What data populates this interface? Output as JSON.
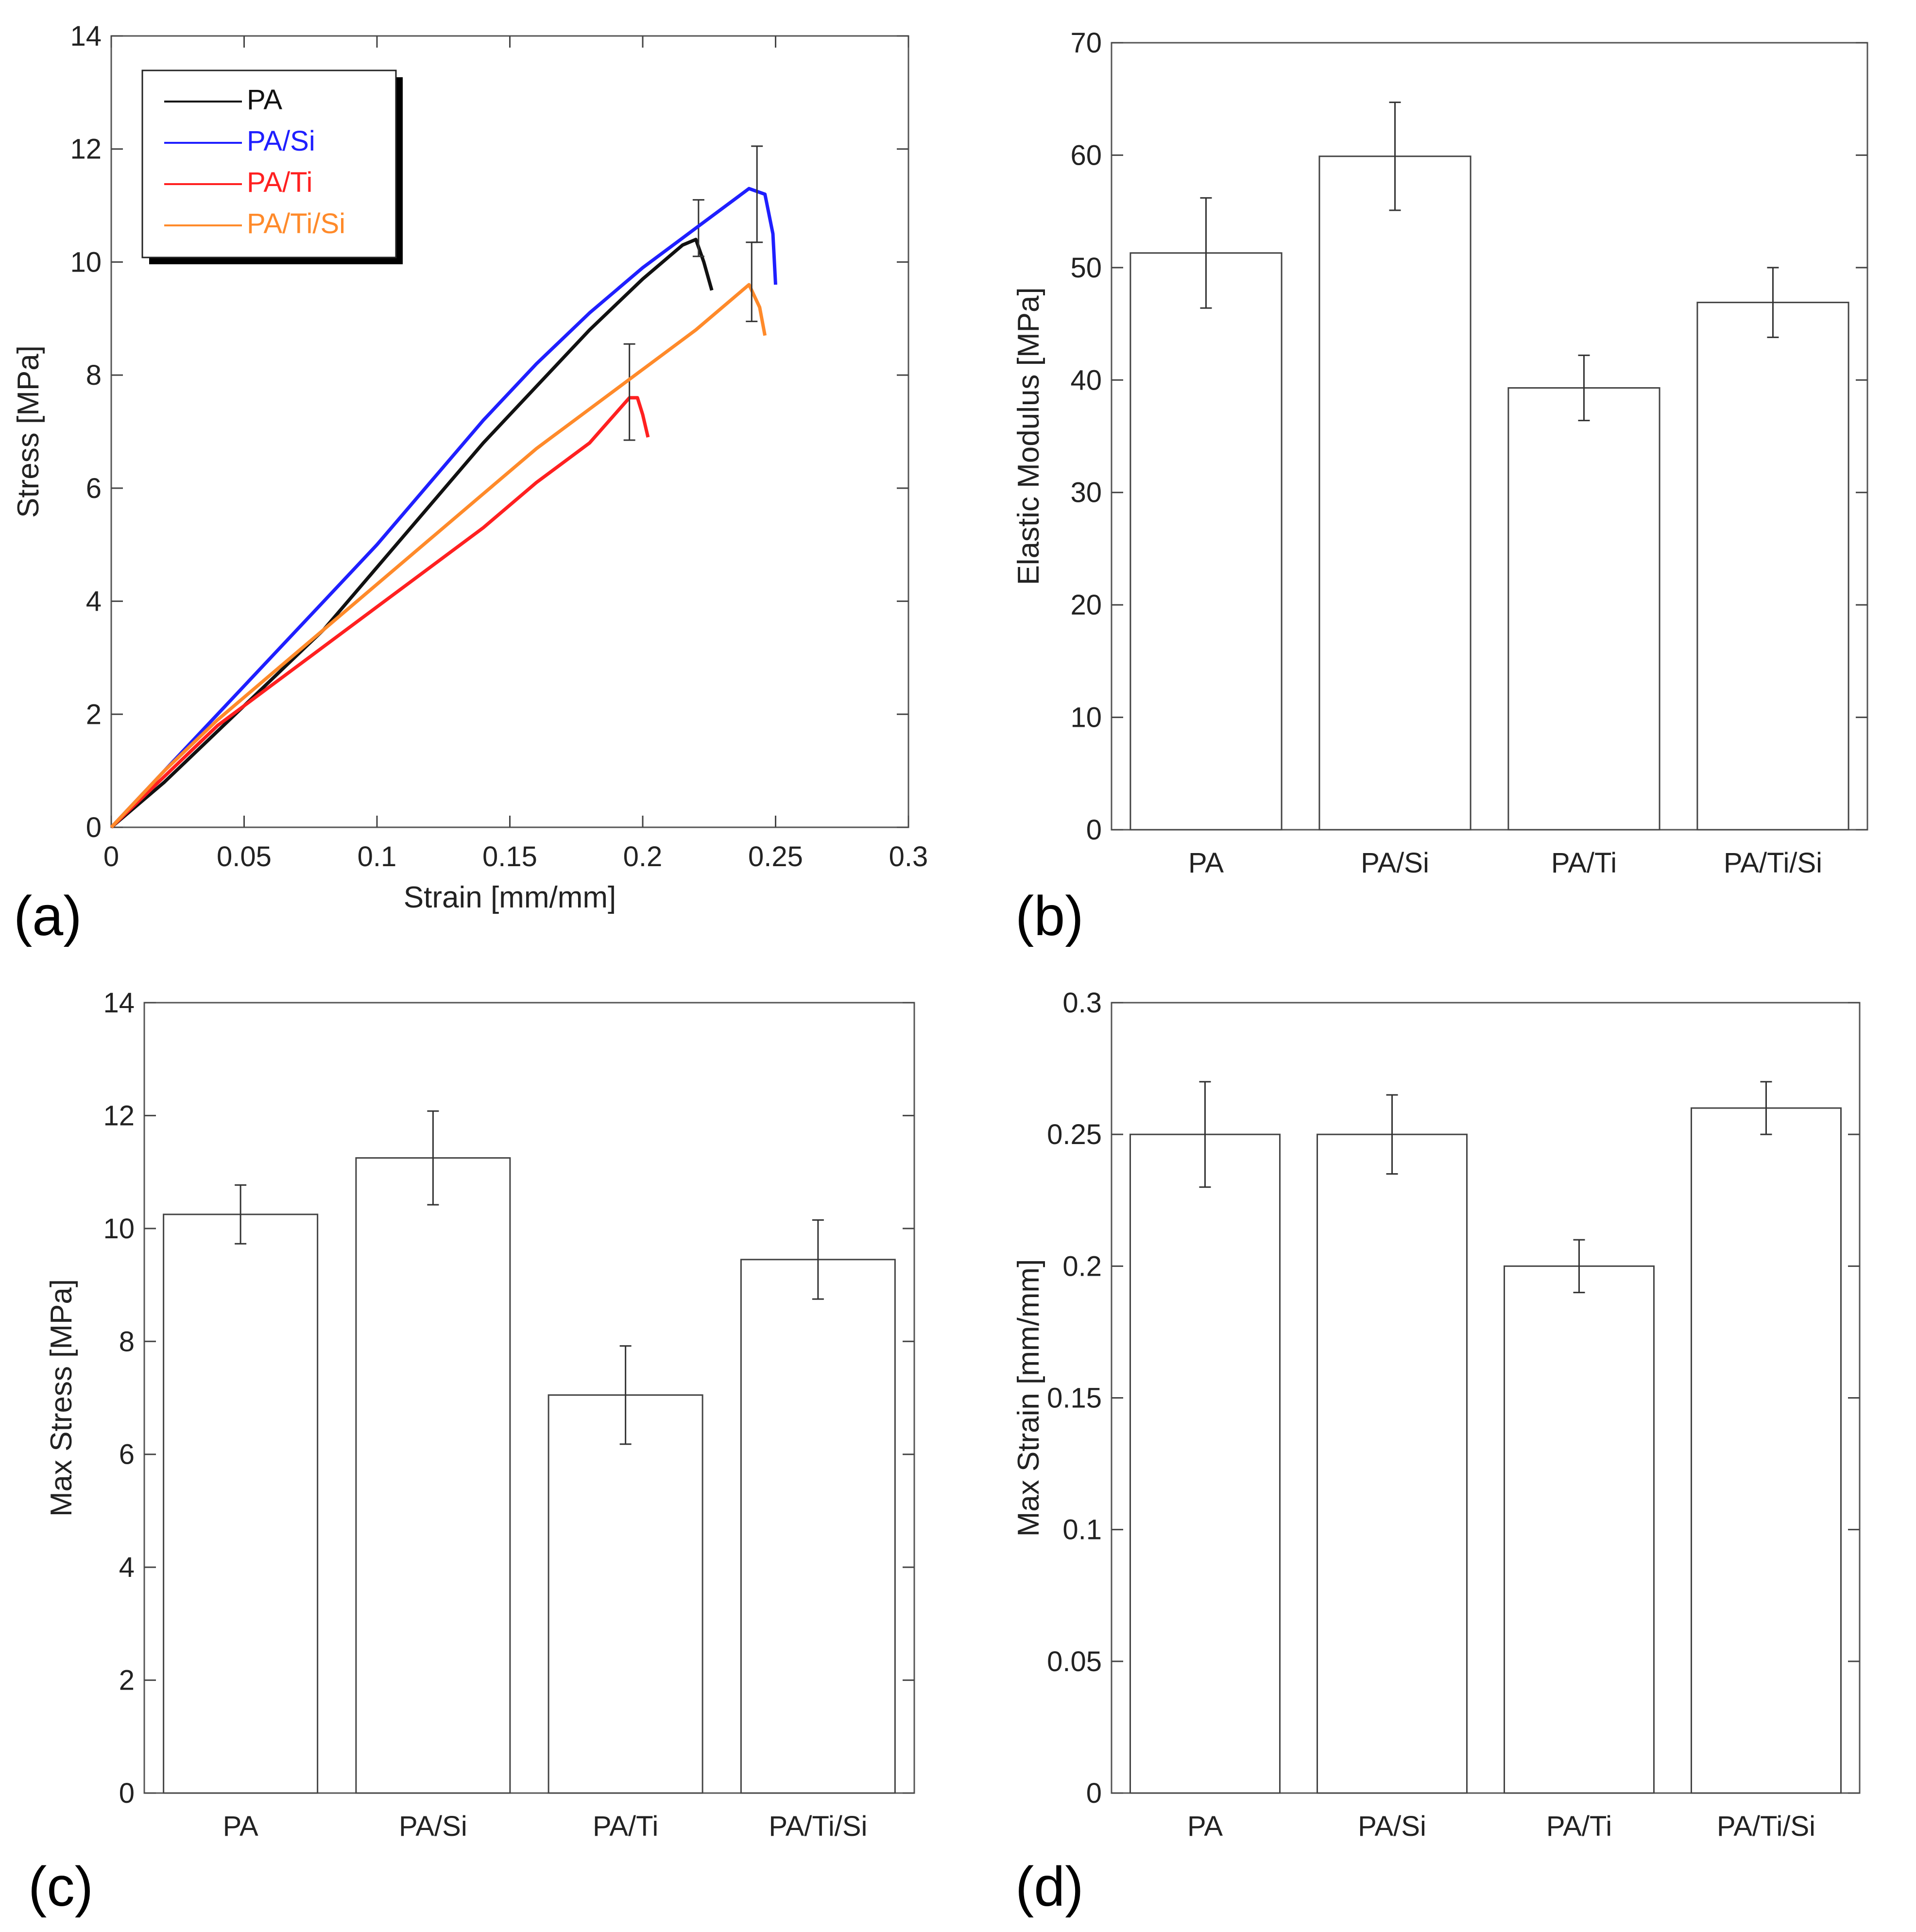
{
  "panel_letters": {
    "a": "(a)",
    "b": "(b)",
    "c": "(c)",
    "d": "(d)"
  },
  "colors": {
    "PA": "#111111",
    "PA/Si": "#1f1fff",
    "PA/Ti": "#ff2020",
    "PA/Ti/Si": "#ff8a2a"
  },
  "chart_data": [
    {
      "id": "a",
      "type": "line",
      "xlabel": "Strain [mm/mm]",
      "ylabel": "Stress [MPa]",
      "xlim": [
        0,
        0.3
      ],
      "ylim": [
        0,
        14
      ],
      "xticks": [
        "0",
        "0.05",
        "0.1",
        "0.15",
        "0.2",
        "0.25",
        "0.3"
      ],
      "yticks": [
        "0",
        "2",
        "4",
        "6",
        "8",
        "10",
        "12",
        "14"
      ],
      "legend_position": "top-left",
      "series": [
        {
          "name": "PA",
          "color": "#111111",
          "x": [
            0,
            0.02,
            0.04,
            0.06,
            0.08,
            0.1,
            0.12,
            0.14,
            0.16,
            0.18,
            0.2,
            0.215,
            0.22,
            0.223,
            0.226
          ],
          "y": [
            0,
            0.8,
            1.7,
            2.6,
            3.5,
            4.6,
            5.7,
            6.8,
            7.8,
            8.8,
            9.7,
            10.3,
            10.4,
            10.0,
            9.5
          ],
          "error_point": {
            "x": 0.221,
            "y": 10.6,
            "err": 0.5
          }
        },
        {
          "name": "PA/Si",
          "color": "#1f1fff",
          "x": [
            0,
            0.02,
            0.04,
            0.06,
            0.08,
            0.1,
            0.12,
            0.14,
            0.16,
            0.18,
            0.2,
            0.22,
            0.24,
            0.246,
            0.249,
            0.25
          ],
          "y": [
            0,
            1.0,
            2.0,
            3.0,
            4.0,
            5.0,
            6.1,
            7.2,
            8.2,
            9.1,
            9.9,
            10.6,
            11.3,
            11.2,
            10.5,
            9.6
          ],
          "error_point": {
            "x": 0.243,
            "y": 11.2,
            "err": 0.85
          }
        },
        {
          "name": "PA/Ti",
          "color": "#ff2020",
          "x": [
            0,
            0.02,
            0.04,
            0.06,
            0.08,
            0.1,
            0.12,
            0.14,
            0.16,
            0.18,
            0.195,
            0.198,
            0.2,
            0.202
          ],
          "y": [
            0,
            0.9,
            1.8,
            2.5,
            3.2,
            3.9,
            4.6,
            5.3,
            6.1,
            6.8,
            7.6,
            7.6,
            7.3,
            6.9
          ],
          "error_point": {
            "x": 0.195,
            "y": 7.7,
            "err": 0.85
          }
        },
        {
          "name": "PA/Ti/Si",
          "color": "#ff8a2a",
          "x": [
            0,
            0.02,
            0.04,
            0.06,
            0.08,
            0.1,
            0.12,
            0.14,
            0.16,
            0.18,
            0.2,
            0.22,
            0.24,
            0.244,
            0.246
          ],
          "y": [
            0,
            1.0,
            1.9,
            2.7,
            3.5,
            4.3,
            5.1,
            5.9,
            6.7,
            7.4,
            8.1,
            8.8,
            9.6,
            9.2,
            8.7
          ],
          "error_point": {
            "x": 0.241,
            "y": 9.65,
            "err": 0.7
          }
        }
      ]
    },
    {
      "id": "b",
      "type": "bar",
      "ylabel": "Elastic Modulus [MPa]",
      "ylim": [
        0,
        70
      ],
      "yticks": [
        "0",
        "10",
        "20",
        "30",
        "40",
        "50",
        "60",
        "70"
      ],
      "categories": [
        "PA",
        "PA/Si",
        "PA/Ti",
        "PA/Ti/Si"
      ],
      "values": [
        51.3,
        59.9,
        39.3,
        46.9
      ],
      "errors": [
        4.9,
        4.8,
        2.9,
        3.1
      ]
    },
    {
      "id": "c",
      "type": "bar",
      "ylabel": "Max Stress [MPa]",
      "ylim": [
        0,
        14
      ],
      "yticks": [
        "0",
        "2",
        "4",
        "6",
        "8",
        "10",
        "12",
        "14"
      ],
      "categories": [
        "PA",
        "PA/Si",
        "PA/Ti",
        "PA/Ti/Si"
      ],
      "values": [
        10.25,
        11.25,
        7.05,
        9.45
      ],
      "errors": [
        0.52,
        0.83,
        0.87,
        0.7
      ]
    },
    {
      "id": "d",
      "type": "bar",
      "ylabel": "Max Strain [mm/mm]",
      "ylim": [
        0,
        0.3
      ],
      "yticks": [
        "0",
        "0.05",
        "0.1",
        "0.15",
        "0.2",
        "0.25",
        "0.3"
      ],
      "categories": [
        "PA",
        "PA/Si",
        "PA/Ti",
        "PA/Ti/Si"
      ],
      "values": [
        0.25,
        0.25,
        0.2,
        0.26
      ],
      "errors": [
        0.02,
        0.015,
        0.01,
        0.01
      ]
    }
  ]
}
